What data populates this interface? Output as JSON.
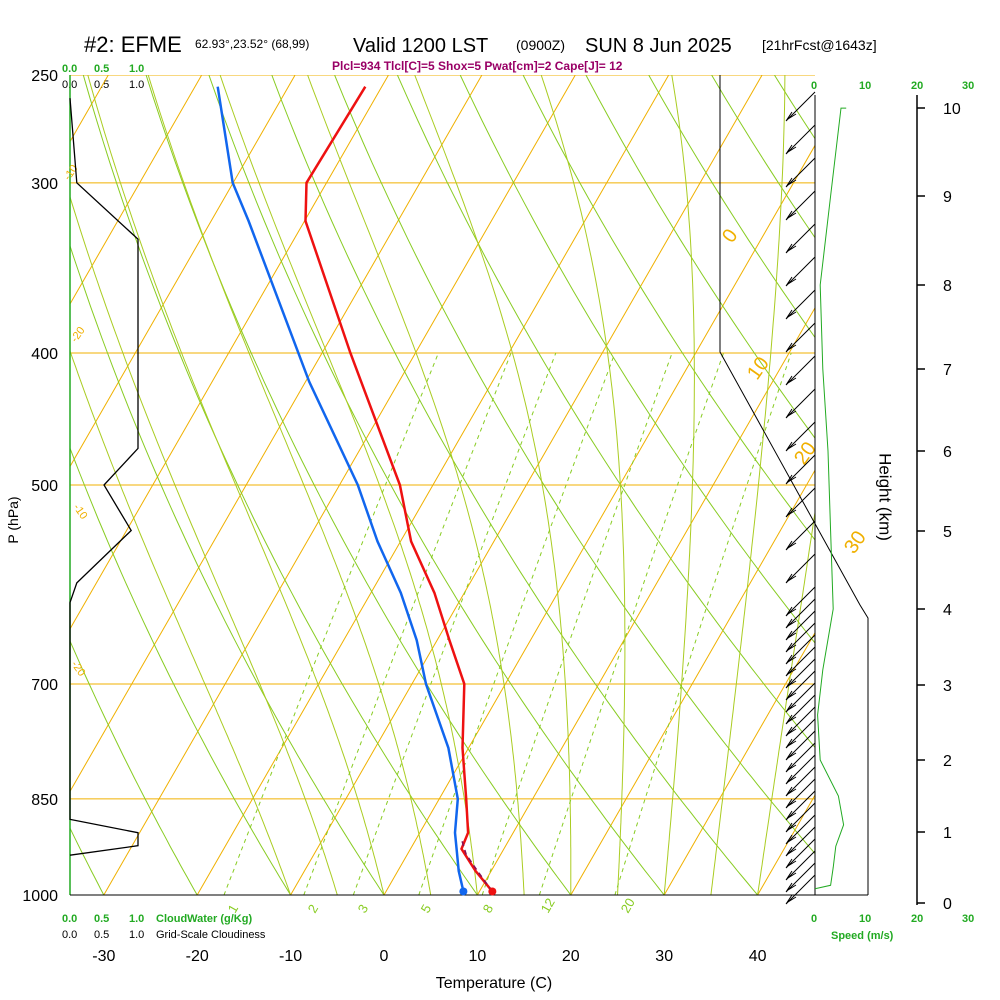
{
  "header": {
    "station": "#2: EFME",
    "coords": "62.93°,23.52° (68,99)",
    "valid": "Valid 1200 LST",
    "utc": "(0900Z)",
    "date": "SUN 8 Jun 2025",
    "forecast": "[21hrFcst@1643z]",
    "indices": "Plcl=934 Tlcl[C]=5 Shox=5 Pwat[cm]=2 Cape[J]= 12"
  },
  "colors": {
    "temperature": "#ee1111",
    "dewpoint": "#1166ee",
    "isotherm": "#f0b000",
    "dry_adiabat": "#88cc22",
    "moist_adiabat": "#aacc22",
    "mixing_ratio": "#88cc22",
    "parcel": "#881155",
    "cloud_scale": "#22aa22",
    "title": "#000000",
    "indices": "#990066"
  },
  "left_scales": {
    "cloudwater_top": [
      "0.0",
      "0.5",
      "1.0"
    ],
    "cloudiness_top": [
      "0.0",
      "0.5",
      "1.0"
    ],
    "cloudwater_bottom": [
      "0.0",
      "0.5",
      "1.0"
    ],
    "cloudwater_label": "CloudWater (g/Kg)",
    "cloudiness_bottom": [
      "0.0",
      "0.5",
      "1.0"
    ],
    "cloudiness_label": "Grid-Scale Cloudiness"
  },
  "speed_scale": {
    "top_ticks": [
      "0",
      "10",
      "20",
      "30"
    ],
    "bottom_ticks": [
      "0",
      "10",
      "20",
      "30"
    ],
    "label": "Speed (m/s)"
  },
  "height_axis": {
    "label": "Height (km)",
    "ticks": [
      "0",
      "1",
      "2",
      "3",
      "4",
      "5",
      "6",
      "7",
      "8",
      "9",
      "10"
    ]
  },
  "chart_data": {
    "type": "line",
    "title": "#2: EFME 62.93°,23.52° (68,99) Valid 1200 LST (0900Z) SUN 8 Jun 2025 [21hrFcst@1643z]",
    "xlabel": "Temperature (C)",
    "ylabel": "P (hPa)",
    "x_ticks": [
      "-30",
      "-20",
      "-10",
      "0",
      "10",
      "20",
      "30",
      "40"
    ],
    "y_ticks": [
      "250",
      "300",
      "400",
      "500",
      "700",
      "850",
      "1000"
    ],
    "xlim": [
      -33.5,
      46
    ],
    "ylim": [
      1000,
      250
    ],
    "y_scale": "log",
    "grid": true,
    "series": [
      {
        "name": "Temperature",
        "x_at_bottom": [
          11.6,
          9.8,
          8.3,
          9.0,
          8.8,
          8.4,
          8.6,
          7.0,
          5.4,
          2.9,
          1.7,
          -3.6,
          -8.4,
          -8.3,
          -2.0
        ],
        "p": [
          994,
          960,
          925,
          900,
          850,
          780,
          700,
          650,
          600,
          550,
          500,
          400,
          320,
          300,
          255
        ]
      },
      {
        "name": "Dewpoint",
        "x_at_bottom": [
          8.5,
          8.0,
          7.8,
          7.6,
          7.9,
          6.9,
          4.5,
          3.5,
          1.8,
          -0.7,
          -2.8,
          -8.0,
          -14.5,
          -16.2,
          -17.8
        ],
        "p": [
          994,
          960,
          930,
          900,
          850,
          780,
          700,
          650,
          600,
          550,
          500,
          420,
          320,
          300,
          255
        ]
      },
      {
        "name": "Parcel",
        "x_at_bottom": [
          11.6,
          10.0,
          8.8,
          8.3
        ],
        "p": [
          994,
          960,
          934,
          910
        ]
      }
    ],
    "height_km": [
      0,
      1,
      2,
      3,
      4,
      5,
      6,
      7,
      8,
      9,
      10
    ],
    "cloudiness_profile": [
      {
        "p": 260,
        "v": 0.0
      },
      {
        "p": 300,
        "v": 0.1
      },
      {
        "p": 330,
        "v": 1.0
      },
      {
        "p": 470,
        "v": 1.0
      },
      {
        "p": 500,
        "v": 0.5
      },
      {
        "p": 540,
        "v": 0.9
      },
      {
        "p": 590,
        "v": 0.1
      },
      {
        "p": 610,
        "v": 0.0
      },
      {
        "p": 880,
        "v": 0.0
      },
      {
        "p": 900,
        "v": 1.0
      },
      {
        "p": 920,
        "v": 1.0
      },
      {
        "p": 935,
        "v": 0.0
      }
    ],
    "wind_speed_profile": [
      {
        "z": 0.2,
        "v": 0.0
      },
      {
        "z": 0.25,
        "v": 3.0
      },
      {
        "z": 0.5,
        "v": 3.5
      },
      {
        "z": 0.8,
        "v": 4.0
      },
      {
        "z": 1.1,
        "v": 5.5
      },
      {
        "z": 1.5,
        "v": 4.5
      },
      {
        "z": 2.0,
        "v": 1.0
      },
      {
        "z": 2.6,
        "v": 0.5
      },
      {
        "z": 3.2,
        "v": 1.5
      },
      {
        "z": 4.0,
        "v": 3.5
      },
      {
        "z": 5.0,
        "v": 3.0
      },
      {
        "z": 6.0,
        "v": 2.5
      },
      {
        "z": 7.0,
        "v": 1.5
      },
      {
        "z": 8.0,
        "v": 1.0
      },
      {
        "z": 9.0,
        "v": 3.0
      },
      {
        "z": 10.0,
        "v": 5.0
      },
      {
        "z": 10.2,
        "v": 6.0
      }
    ],
    "isotherm_labels": [
      "-20",
      "-10",
      "0",
      "10",
      "20",
      "30"
    ],
    "isotherm_labels_left": [
      "-20",
      "-10",
      "-10",
      "-20"
    ],
    "mixing_ratio_labels": [
      "1",
      "2",
      "3",
      "5",
      "8",
      "12",
      "20"
    ]
  }
}
